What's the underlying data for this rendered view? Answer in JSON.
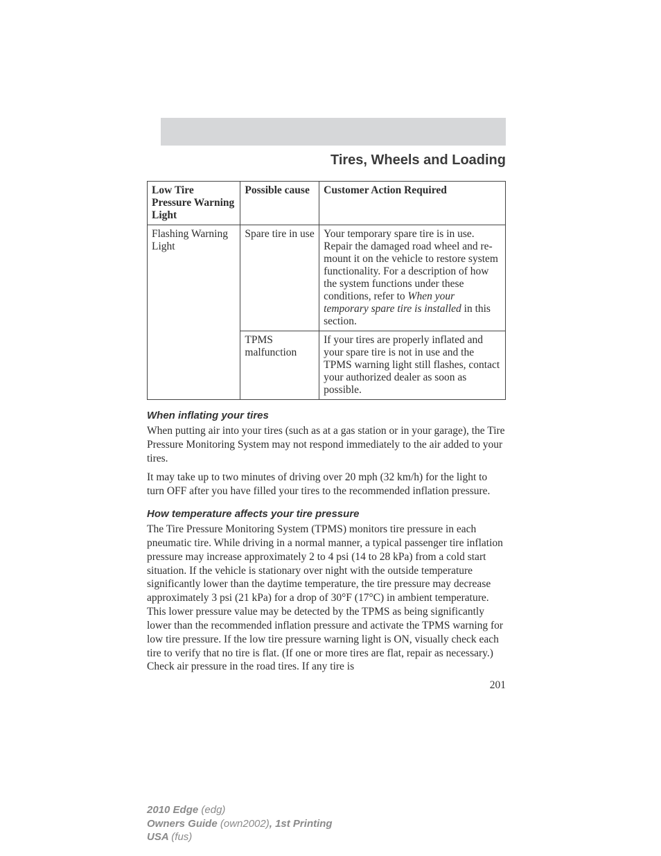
{
  "page": {
    "title": "Tires, Wheels and Loading",
    "number": "201"
  },
  "table": {
    "headers": {
      "c1": "Low Tire Pressure Warning Light",
      "c2": "Possible cause",
      "c3": "Customer Action Required"
    },
    "r1": {
      "c1": "Flashing Warning Light",
      "c2": "Spare tire in use",
      "c3_part1": "Your temporary spare tire is in use. Repair the damaged road wheel and re-mount it on the vehicle to restore system functionality. For a description of how the system functions under these conditions, refer to ",
      "c3_em": "When your temporary spare tire is installed",
      "c3_part2": " in this section."
    },
    "r2": {
      "c2": "TPMS malfunction",
      "c3": "If your tires are properly inflated and your spare tire is not in use and the TPMS warning light still flashes, contact your authorized dealer as soon as possible."
    }
  },
  "sections": {
    "s1": {
      "heading": "When inflating your tires",
      "p1": "When putting air into your tires (such as at a gas station or in your garage), the Tire Pressure Monitoring System may not respond immediately to the air added to your tires.",
      "p2": "It may take up to two minutes of driving over 20 mph (32 km/h) for the light to turn OFF after you have filled your tires to the recommended inflation pressure."
    },
    "s2": {
      "heading": "How temperature affects your tire pressure",
      "p1": "The Tire Pressure Monitoring System (TPMS) monitors tire pressure in each pneumatic tire. While driving in a normal manner, a typical passenger tire inflation pressure may increase approximately 2 to 4 psi (14 to 28 kPa) from a cold start situation. If the vehicle is stationary over night with the outside temperature significantly lower than the daytime temperature, the tire pressure may decrease approximately 3 psi (21 kPa) for a drop of 30°F (17°C) in ambient temperature. This lower pressure value may be detected by the TPMS as being significantly lower than the recommended inflation pressure and activate the TPMS warning for low tire pressure. If the low tire pressure warning light is ON, visually check each tire to verify that no tire is flat. (If one or more tires are flat, repair as necessary.) Check air pressure in the road tires. If any tire is"
    }
  },
  "footer": {
    "l1a": "2010 Edge ",
    "l1b": "(edg)",
    "l2a": "Owners Guide ",
    "l2b": "(own2002)",
    "l2c": ", 1st Printing",
    "l3a": "USA ",
    "l3b": "(fus)"
  }
}
